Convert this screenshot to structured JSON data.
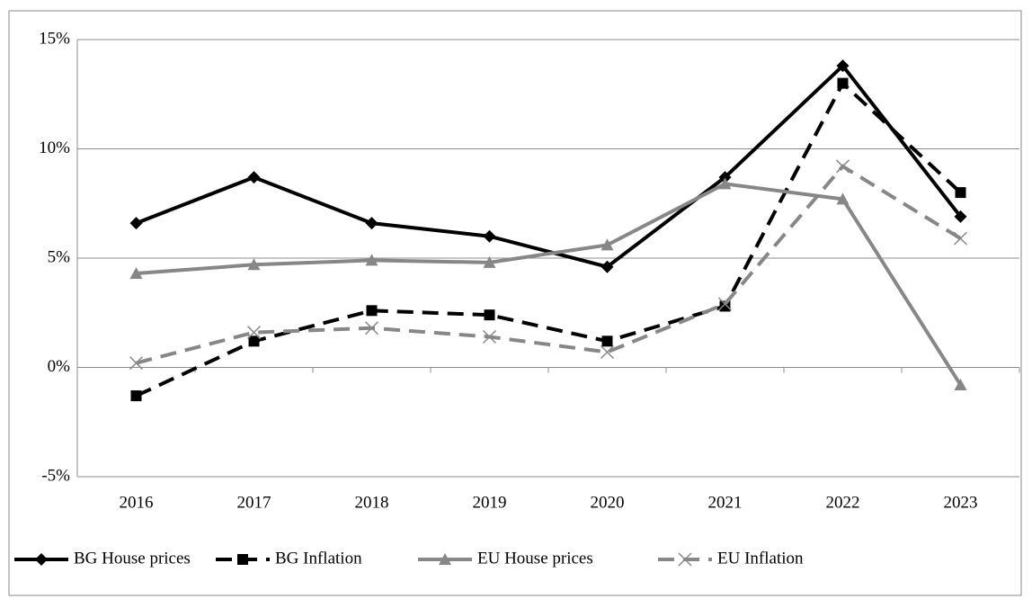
{
  "chart_data": {
    "type": "line",
    "categories": [
      "2016",
      "2017",
      "2018",
      "2019",
      "2020",
      "2021",
      "2022",
      "2023"
    ],
    "series": [
      {
        "name": "BG House prices",
        "color": "#000000",
        "dash": false,
        "marker": "diamond",
        "values": [
          6.6,
          8.7,
          6.6,
          6.0,
          4.6,
          8.7,
          13.8,
          6.9
        ]
      },
      {
        "name": "BG Inflation",
        "color": "#000000",
        "dash": true,
        "marker": "square",
        "values": [
          -1.3,
          1.2,
          2.6,
          2.4,
          1.2,
          2.8,
          13.0,
          8.0
        ]
      },
      {
        "name": "EU House prices",
        "color": "#878787",
        "dash": false,
        "marker": "triangle",
        "values": [
          4.3,
          4.7,
          4.9,
          4.8,
          5.6,
          8.4,
          7.7,
          -0.8
        ]
      },
      {
        "name": "EU Inflation",
        "color": "#878787",
        "dash": true,
        "marker": "x",
        "values": [
          0.2,
          1.6,
          1.8,
          1.4,
          0.7,
          2.9,
          9.2,
          5.9
        ]
      }
    ],
    "ylim": [
      -5,
      15
    ],
    "yticks": [
      {
        "value": -5,
        "label": "-5%"
      },
      {
        "value": 0,
        "label": "0%"
      },
      {
        "value": 5,
        "label": "5%"
      },
      {
        "value": 10,
        "label": "10%"
      },
      {
        "value": 15,
        "label": "15%"
      }
    ],
    "grid": true,
    "legend": "bottom"
  }
}
